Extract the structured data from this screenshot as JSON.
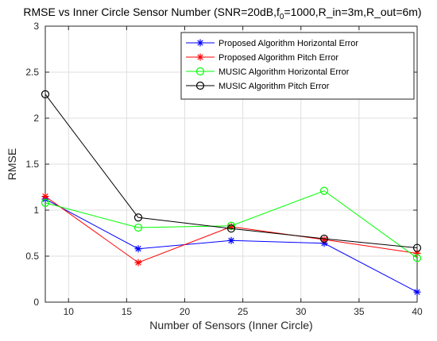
{
  "chart_data": {
    "type": "line",
    "title_prefix": "RMSE vs Inner Circle Sensor Number (SNR=20dB,f",
    "title_sub": "0",
    "title_suffix": "=1000,R_in=3m,R_out=6m)",
    "xlabel": "Number of Sensors (Inner Circle)",
    "ylabel": "RMSE",
    "xlim": [
      8,
      40
    ],
    "ylim": [
      0,
      3
    ],
    "x_ticks": [
      "10",
      "15",
      "20",
      "25",
      "30",
      "35",
      "40"
    ],
    "y_ticks": [
      "0",
      "0.5",
      "1",
      "1.5",
      "2",
      "2.5",
      "3"
    ],
    "grid": true,
    "legend_position": "top-right",
    "x": [
      8,
      16,
      24,
      32,
      40
    ],
    "series": [
      {
        "name": "Proposed Algorithm Horizontal Error",
        "color": "#0000ff",
        "marker": "star",
        "values": [
          1.12,
          0.58,
          0.67,
          0.64,
          0.11
        ]
      },
      {
        "name": "Proposed Algorithm Pitch Error",
        "color": "#ff0000",
        "marker": "star",
        "values": [
          1.15,
          0.43,
          0.82,
          0.68,
          0.53
        ]
      },
      {
        "name": "MUSIC Algorithm Horizontal Error",
        "color": "#00ff00",
        "marker": "circle",
        "values": [
          1.08,
          0.81,
          0.83,
          1.21,
          0.48
        ]
      },
      {
        "name": "MUSIC Algorithm Pitch Error",
        "color": "#000000",
        "marker": "circle",
        "values": [
          2.26,
          0.92,
          0.8,
          0.69,
          0.59
        ]
      }
    ]
  }
}
